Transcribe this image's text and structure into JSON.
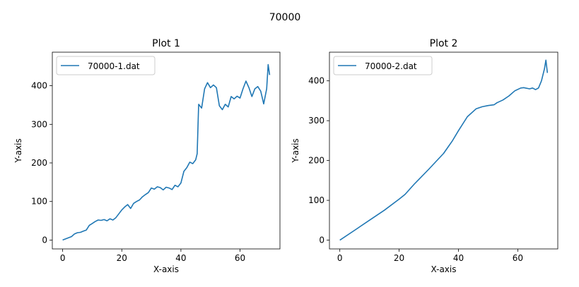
{
  "figure": {
    "suptitle": "70000"
  },
  "chart_data": [
    {
      "type": "line",
      "title": "Plot 1",
      "xlabel": "X-axis",
      "ylabel": "Y-axis",
      "xlim": [
        -3.5,
        73.5
      ],
      "ylim": [
        -23,
        487
      ],
      "xticks": [
        0,
        20,
        40,
        60
      ],
      "yticks": [
        0,
        100,
        200,
        300,
        400
      ],
      "grid": false,
      "legend": "top-left",
      "series": [
        {
          "name": "70000-1.dat",
          "color": "#1f77b4",
          "x": [
            0,
            1,
            2,
            3,
            4,
            5,
            6,
            7,
            8,
            9,
            10,
            11,
            12,
            13,
            14,
            15,
            16,
            17,
            18,
            19,
            20,
            21,
            22,
            23,
            24,
            25,
            26,
            27,
            28,
            29,
            30,
            31,
            32,
            33,
            34,
            35,
            36,
            37,
            38,
            39,
            40,
            41,
            42,
            43,
            44,
            45,
            45.5,
            46,
            47,
            48,
            49,
            50,
            51,
            52,
            53,
            54,
            55,
            56,
            57,
            58,
            59,
            60,
            61,
            62,
            63,
            64,
            65,
            66,
            67,
            68,
            69,
            69.5,
            70
          ],
          "y": [
            0,
            3,
            6,
            9,
            16,
            19,
            20,
            23,
            26,
            38,
            43,
            48,
            52,
            51,
            53,
            50,
            55,
            52,
            58,
            68,
            78,
            86,
            92,
            82,
            95,
            100,
            104,
            112,
            118,
            123,
            135,
            132,
            138,
            136,
            130,
            137,
            135,
            131,
            142,
            138,
            148,
            178,
            188,
            202,
            198,
            208,
            224,
            352,
            342,
            392,
            408,
            395,
            402,
            395,
            348,
            338,
            352,
            345,
            372,
            366,
            373,
            368,
            392,
            412,
            395,
            372,
            392,
            398,
            386,
            353,
            392,
            455,
            428
          ]
        }
      ]
    },
    {
      "type": "line",
      "title": "Plot 2",
      "xlabel": "X-axis",
      "ylabel": "Y-axis",
      "xlim": [
        -3.5,
        73.5
      ],
      "ylim": [
        -22,
        472
      ],
      "xticks": [
        0,
        20,
        40,
        60
      ],
      "yticks": [
        0,
        100,
        200,
        300,
        400
      ],
      "grid": false,
      "legend": "top-left",
      "series": [
        {
          "name": "70000-2.dat",
          "color": "#1f77b4",
          "x": [
            0,
            5,
            10,
            15,
            20,
            22,
            25,
            30,
            35,
            38,
            40,
            43,
            46,
            48,
            50,
            52,
            53,
            55,
            57,
            59,
            61,
            62,
            64,
            65,
            66,
            67,
            68,
            69,
            69.5,
            70
          ],
          "y": [
            0,
            25,
            50,
            75,
            103,
            115,
            140,
            178,
            218,
            250,
            275,
            310,
            330,
            335,
            338,
            340,
            345,
            352,
            362,
            375,
            382,
            383,
            380,
            382,
            378,
            382,
            400,
            430,
            452,
            420
          ]
        }
      ]
    }
  ]
}
